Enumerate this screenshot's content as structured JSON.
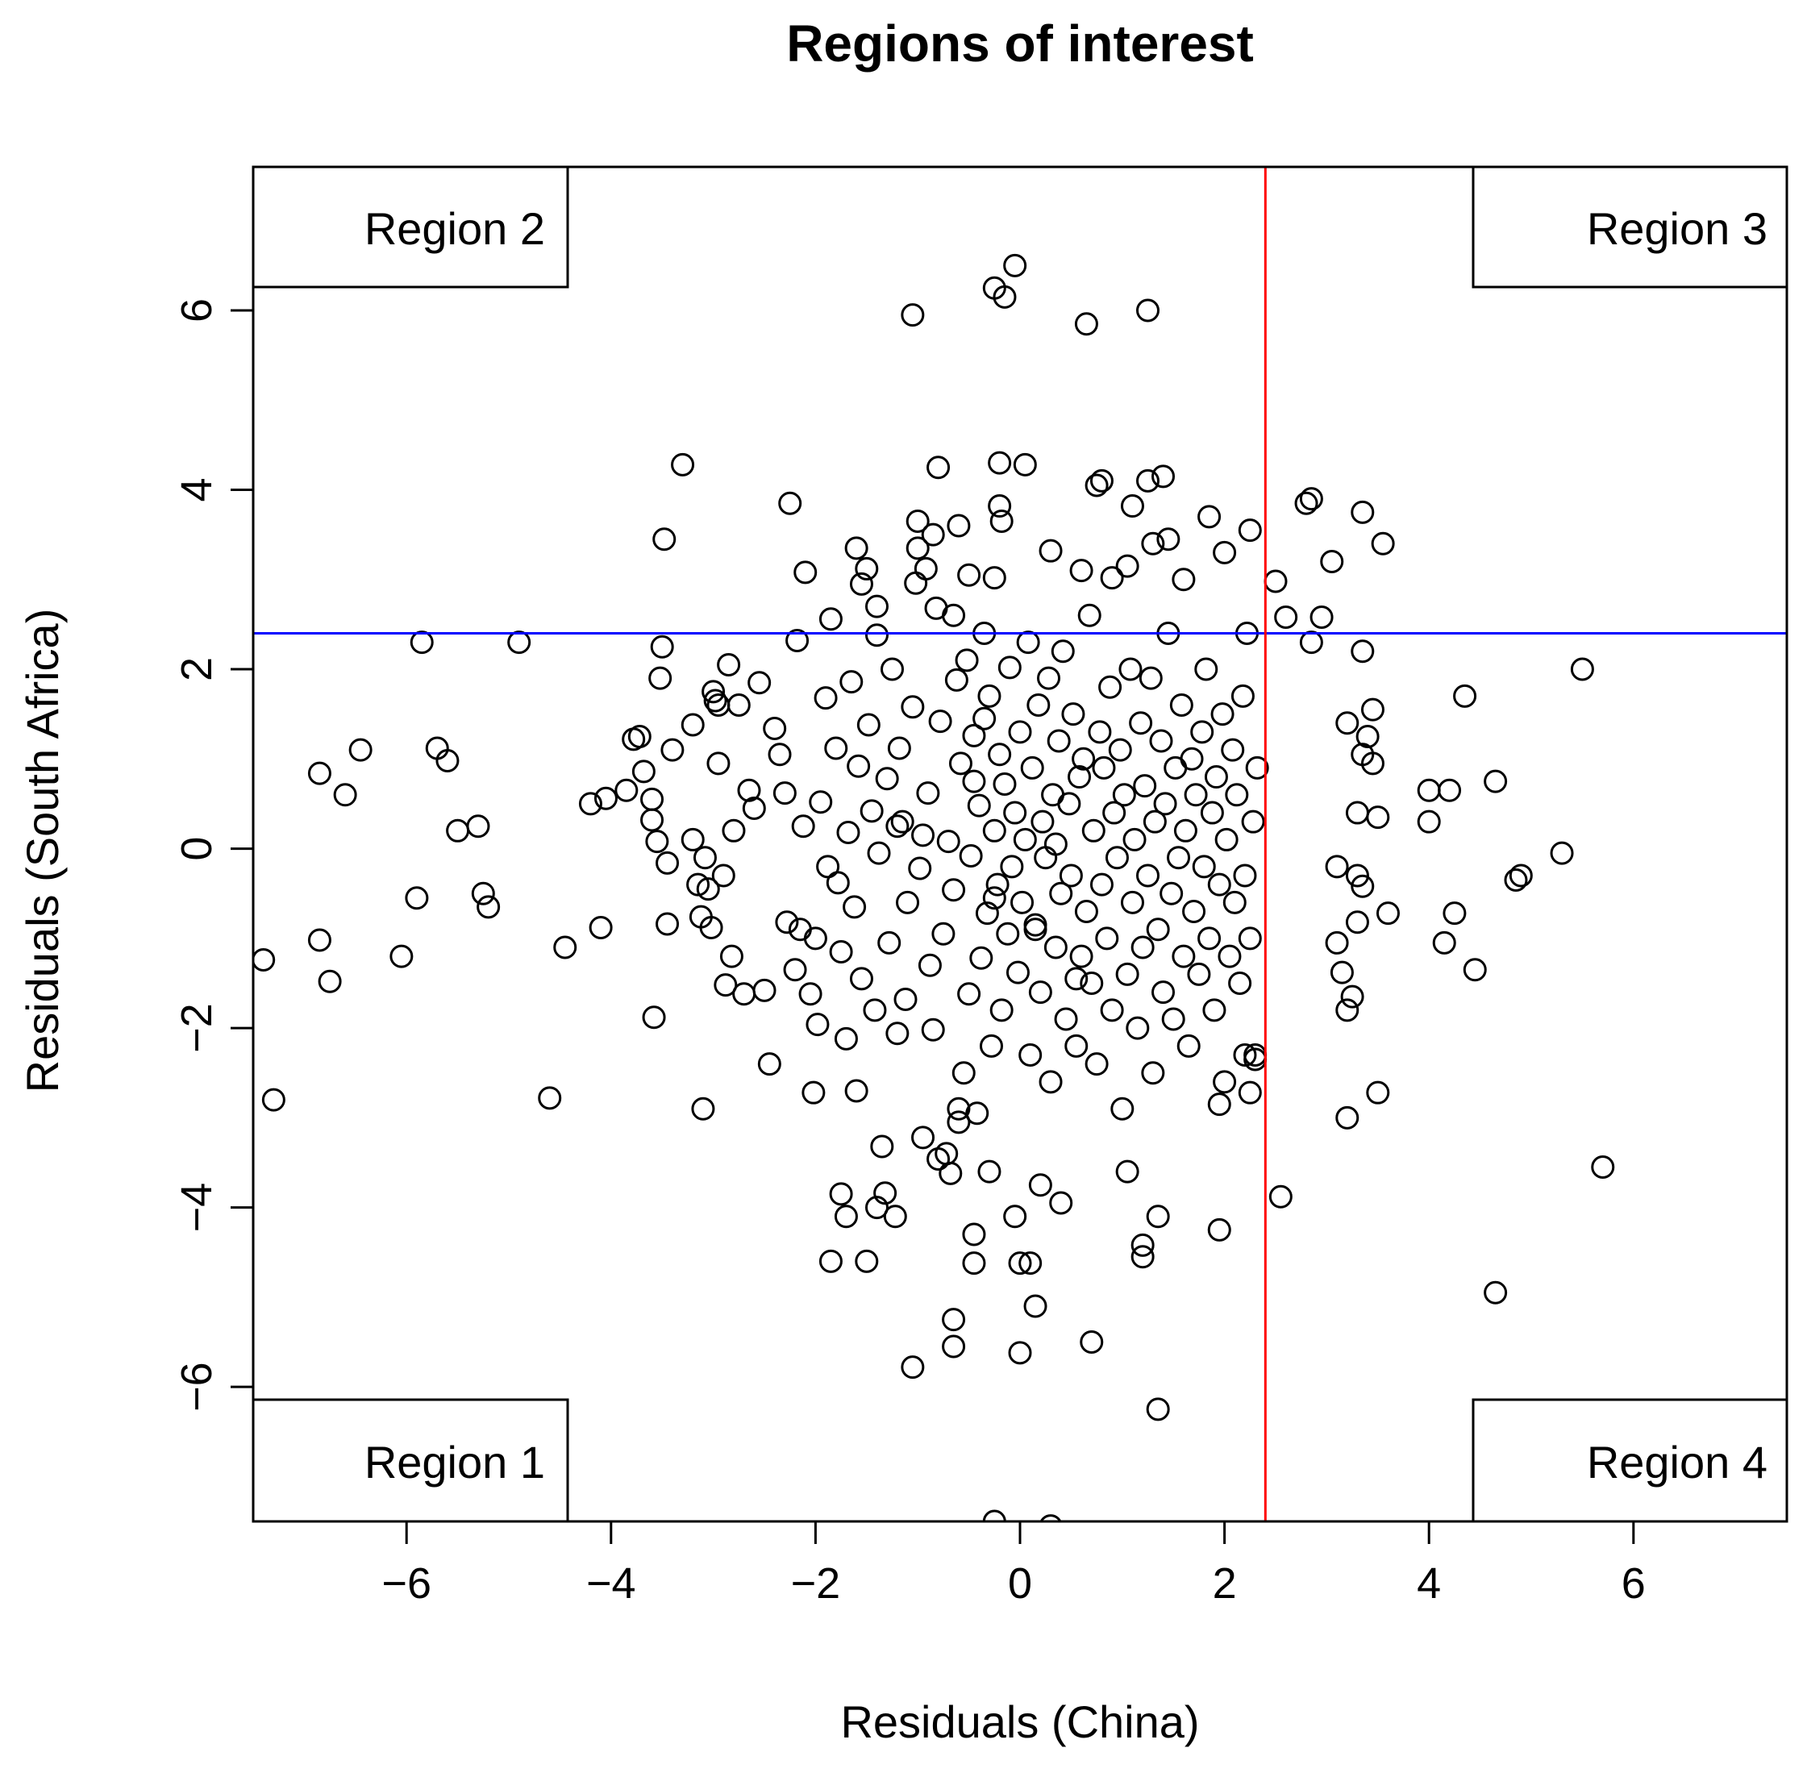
{
  "chart_data": {
    "type": "scatter",
    "title": "Regions of interest",
    "xlabel": "Residuals (China)",
    "ylabel": "Residuals (South Africa)",
    "xlim": [
      -7.5,
      7.5
    ],
    "ylim": [
      -7.5,
      7.6
    ],
    "xticks": [
      -6,
      -4,
      -2,
      0,
      2,
      4,
      6
    ],
    "yticks": [
      -6,
      -4,
      -2,
      0,
      2,
      4,
      6
    ],
    "xtick_labels": [
      "−6",
      "−4",
      "−2",
      "0",
      "2",
      "4",
      "6"
    ],
    "ytick_labels": [
      "−6",
      "−4",
      "−2",
      "0",
      "2",
      "4",
      "6"
    ],
    "grid": false,
    "point_color": "#000000",
    "hline": {
      "y": 2.4,
      "color": "#0000ff"
    },
    "vline": {
      "x": 2.4,
      "color": "#ff0000"
    },
    "regions": [
      {
        "label": "Region 1",
        "corner": "bottom-left"
      },
      {
        "label": "Region 2",
        "corner": "top-left"
      },
      {
        "label": "Region 3",
        "corner": "top-right"
      },
      {
        "label": "Region 4",
        "corner": "bottom-right"
      }
    ],
    "points": [
      [
        -7.4,
        -1.24
      ],
      [
        -7.3,
        -2.8
      ],
      [
        -6.85,
        0.84
      ],
      [
        -6.85,
        -1.02
      ],
      [
        -6.75,
        -1.48
      ],
      [
        -6.6,
        0.6
      ],
      [
        -6.45,
        1.1
      ],
      [
        -6.05,
        -1.2
      ],
      [
        -5.9,
        -0.55
      ],
      [
        -5.85,
        2.3
      ],
      [
        -5.7,
        1.12
      ],
      [
        -5.6,
        0.98
      ],
      [
        -5.5,
        0.2
      ],
      [
        -5.3,
        0.25
      ],
      [
        -5.25,
        -0.5
      ],
      [
        -5.2,
        -0.65
      ],
      [
        -4.9,
        2.3
      ],
      [
        -4.6,
        -2.78
      ],
      [
        -4.45,
        -1.1
      ],
      [
        -4.2,
        0.5
      ],
      [
        -4.1,
        -0.88
      ],
      [
        -4.05,
        0.56
      ],
      [
        -3.85,
        0.65
      ],
      [
        -3.78,
        1.22
      ],
      [
        -3.72,
        1.25
      ],
      [
        -3.68,
        0.86
      ],
      [
        -3.6,
        0.55
      ],
      [
        -3.6,
        0.32
      ],
      [
        -3.58,
        -1.88
      ],
      [
        -3.55,
        0.08
      ],
      [
        -3.52,
        1.9
      ],
      [
        -3.5,
        2.25
      ],
      [
        -3.48,
        3.45
      ],
      [
        -3.45,
        -0.16
      ],
      [
        -3.45,
        -0.84
      ],
      [
        -3.4,
        1.1
      ],
      [
        -3.3,
        4.28
      ],
      [
        -3.2,
        1.38
      ],
      [
        -3.2,
        0.1
      ],
      [
        -3.15,
        -0.4
      ],
      [
        -3.12,
        -0.76
      ],
      [
        -3.1,
        -2.9
      ],
      [
        -3.08,
        -0.1
      ],
      [
        -3.05,
        -0.45
      ],
      [
        -3.02,
        -0.88
      ],
      [
        -3.0,
        1.75
      ],
      [
        -2.98,
        1.65
      ],
      [
        -2.95,
        0.95
      ],
      [
        -2.9,
        -0.3
      ],
      [
        -2.88,
        -1.52
      ],
      [
        -2.85,
        2.05
      ],
      [
        -2.82,
        -1.2
      ],
      [
        -2.8,
        0.2
      ],
      [
        -2.75,
        1.6
      ],
      [
        -2.65,
        0.65
      ],
      [
        -2.6,
        0.45
      ],
      [
        -2.55,
        1.85
      ],
      [
        -2.5,
        -1.58
      ],
      [
        -2.45,
        -2.4
      ],
      [
        -2.4,
        1.34
      ],
      [
        -2.35,
        1.05
      ],
      [
        -2.3,
        0.62
      ],
      [
        -2.28,
        -0.82
      ],
      [
        -2.25,
        3.85
      ],
      [
        -2.2,
        -1.35
      ],
      [
        -2.18,
        2.32
      ],
      [
        -2.15,
        -0.9
      ],
      [
        -2.12,
        0.25
      ],
      [
        -2.1,
        3.08
      ],
      [
        -2.05,
        -1.62
      ],
      [
        -2.02,
        -2.72
      ],
      [
        -2.0,
        -1.0
      ],
      [
        -1.98,
        -1.96
      ],
      [
        -1.95,
        0.52
      ],
      [
        -1.9,
        1.68
      ],
      [
        -1.88,
        -0.2
      ],
      [
        -1.85,
        2.56
      ],
      [
        -1.8,
        1.12
      ],
      [
        -1.78,
        -0.38
      ],
      [
        -1.75,
        -1.15
      ],
      [
        -1.7,
        -2.12
      ],
      [
        -1.68,
        0.18
      ],
      [
        -1.65,
        1.86
      ],
      [
        -1.62,
        -0.65
      ],
      [
        -1.6,
        -2.7
      ],
      [
        -1.58,
        0.92
      ],
      [
        -1.55,
        -1.45
      ],
      [
        -1.5,
        -4.6
      ],
      [
        -1.48,
        1.38
      ],
      [
        -1.45,
        0.42
      ],
      [
        -1.42,
        -1.8
      ],
      [
        -1.4,
        2.38
      ],
      [
        -1.38,
        -0.05
      ],
      [
        -1.35,
        -3.32
      ],
      [
        -1.32,
        -3.84
      ],
      [
        -1.3,
        0.78
      ],
      [
        -1.28,
        -1.05
      ],
      [
        -1.25,
        2.0
      ],
      [
        -1.22,
        -4.1
      ],
      [
        -1.2,
        -2.06
      ],
      [
        -1.18,
        1.12
      ],
      [
        -1.15,
        0.3
      ],
      [
        -1.12,
        -1.68
      ],
      [
        -1.1,
        -0.6
      ],
      [
        -1.05,
        1.58
      ],
      [
        -1.02,
        2.96
      ],
      [
        -1.0,
        3.35
      ],
      [
        -0.98,
        -0.22
      ],
      [
        -0.95,
        -3.22
      ],
      [
        -0.92,
        3.12
      ],
      [
        -0.9,
        0.62
      ],
      [
        -0.88,
        -1.3
      ],
      [
        -0.85,
        -2.02
      ],
      [
        -0.82,
        2.68
      ],
      [
        -0.8,
        -3.46
      ],
      [
        -0.78,
        1.42
      ],
      [
        -0.75,
        -0.95
      ],
      [
        -0.72,
        -3.4
      ],
      [
        -0.7,
        0.08
      ],
      [
        -0.68,
        -3.62
      ],
      [
        -0.65,
        -0.46
      ],
      [
        -0.62,
        1.88
      ],
      [
        -0.6,
        -2.9
      ],
      [
        -0.58,
        0.95
      ],
      [
        -0.55,
        -2.5
      ],
      [
        -0.52,
        2.1
      ],
      [
        -0.5,
        -1.62
      ],
      [
        -0.48,
        -0.08
      ],
      [
        -0.45,
        1.26
      ],
      [
        -0.42,
        -2.95
      ],
      [
        -0.4,
        0.48
      ],
      [
        -0.38,
        -1.22
      ],
      [
        -0.35,
        2.4
      ],
      [
        -0.32,
        -0.72
      ],
      [
        -0.3,
        1.7
      ],
      [
        -0.28,
        -2.2
      ],
      [
        -0.25,
        0.2
      ],
      [
        -0.22,
        -0.4
      ],
      [
        -0.2,
        1.05
      ],
      [
        -0.18,
        -1.8
      ],
      [
        -0.15,
        0.72
      ],
      [
        -0.12,
        -0.95
      ],
      [
        -0.1,
        2.02
      ],
      [
        -0.08,
        -0.2
      ],
      [
        -0.05,
        0.4
      ],
      [
        -0.02,
        -1.38
      ],
      [
        0.0,
        1.3
      ],
      [
        0.02,
        -0.6
      ],
      [
        0.05,
        0.1
      ],
      [
        0.08,
        2.3
      ],
      [
        0.1,
        -2.3
      ],
      [
        0.12,
        0.9
      ],
      [
        0.15,
        -0.9
      ],
      [
        0.18,
        1.6
      ],
      [
        0.2,
        -1.6
      ],
      [
        0.22,
        0.3
      ],
      [
        0.25,
        -0.1
      ],
      [
        0.28,
        1.9
      ],
      [
        0.3,
        -2.6
      ],
      [
        0.32,
        0.6
      ],
      [
        0.35,
        -1.1
      ],
      [
        0.38,
        1.2
      ],
      [
        0.4,
        -0.5
      ],
      [
        0.42,
        2.2
      ],
      [
        0.45,
        -1.9
      ],
      [
        0.48,
        0.5
      ],
      [
        0.5,
        -0.3
      ],
      [
        0.52,
        1.5
      ],
      [
        0.55,
        -2.2
      ],
      [
        0.58,
        0.8
      ],
      [
        0.6,
        -1.2
      ],
      [
        0.62,
        1.0
      ],
      [
        0.65,
        -0.7
      ],
      [
        0.68,
        2.6
      ],
      [
        0.7,
        -1.5
      ],
      [
        0.72,
        0.2
      ],
      [
        0.75,
        -2.4
      ],
      [
        0.78,
        1.3
      ],
      [
        0.8,
        -0.4
      ],
      [
        0.82,
        0.9
      ],
      [
        0.85,
        -1.0
      ],
      [
        0.88,
        1.8
      ],
      [
        0.9,
        -1.8
      ],
      [
        0.92,
        0.4
      ],
      [
        0.95,
        -0.1
      ],
      [
        0.98,
        1.1
      ],
      [
        1.0,
        -2.9
      ],
      [
        1.02,
        0.6
      ],
      [
        1.05,
        -1.4
      ],
      [
        1.08,
        2.0
      ],
      [
        1.1,
        -0.6
      ],
      [
        1.12,
        0.1
      ],
      [
        1.15,
        -2.0
      ],
      [
        1.18,
        1.4
      ],
      [
        1.2,
        -1.1
      ],
      [
        1.22,
        0.7
      ],
      [
        1.25,
        -0.3
      ],
      [
        1.28,
        1.9
      ],
      [
        1.3,
        -2.5
      ],
      [
        1.32,
        0.3
      ],
      [
        1.35,
        -0.9
      ],
      [
        1.38,
        1.2
      ],
      [
        1.4,
        -1.6
      ],
      [
        1.42,
        0.5
      ],
      [
        1.45,
        2.4
      ],
      [
        1.48,
        -0.5
      ],
      [
        1.5,
        -1.9
      ],
      [
        1.52,
        0.9
      ],
      [
        1.55,
        -0.1
      ],
      [
        1.58,
        1.6
      ],
      [
        1.6,
        -1.2
      ],
      [
        1.62,
        0.2
      ],
      [
        1.65,
        -2.2
      ],
      [
        1.68,
        1.0
      ],
      [
        1.7,
        -0.7
      ],
      [
        1.72,
        0.6
      ],
      [
        1.75,
        -1.4
      ],
      [
        1.78,
        1.3
      ],
      [
        1.8,
        -0.2
      ],
      [
        1.82,
        2.0
      ],
      [
        1.85,
        -1.0
      ],
      [
        1.88,
        0.4
      ],
      [
        1.9,
        -1.8
      ],
      [
        1.92,
        0.8
      ],
      [
        1.95,
        -0.4
      ],
      [
        1.98,
        1.5
      ],
      [
        2.0,
        -2.6
      ],
      [
        2.02,
        0.1
      ],
      [
        2.05,
        -1.2
      ],
      [
        2.08,
        1.1
      ],
      [
        2.1,
        -0.6
      ],
      [
        2.12,
        0.6
      ],
      [
        2.15,
        -1.5
      ],
      [
        2.18,
        1.7
      ],
      [
        2.2,
        -0.3
      ],
      [
        2.22,
        2.4
      ],
      [
        2.25,
        -1.0
      ],
      [
        2.28,
        0.3
      ],
      [
        2.3,
        -2.3
      ],
      [
        2.32,
        0.9
      ],
      [
        -0.05,
        6.5
      ],
      [
        -0.25,
        6.25
      ],
      [
        -0.15,
        6.15
      ],
      [
        0.65,
        5.85
      ],
      [
        1.25,
        6.0
      ],
      [
        -1.05,
        5.95
      ],
      [
        -0.2,
        4.3
      ],
      [
        0.05,
        4.28
      ],
      [
        -0.8,
        4.25
      ],
      [
        0.8,
        4.1
      ],
      [
        0.75,
        4.05
      ],
      [
        1.25,
        4.1
      ],
      [
        1.4,
        4.15
      ],
      [
        1.1,
        3.82
      ],
      [
        -0.2,
        3.82
      ],
      [
        -0.18,
        3.65
      ],
      [
        -1.0,
        3.65
      ],
      [
        1.85,
        3.7
      ],
      [
        2.25,
        3.55
      ],
      [
        2.8,
        3.85
      ],
      [
        2.85,
        3.9
      ],
      [
        3.35,
        3.75
      ],
      [
        3.55,
        3.4
      ],
      [
        3.05,
        3.2
      ],
      [
        2.5,
        2.98
      ],
      [
        -0.85,
        3.5
      ],
      [
        -0.6,
        3.6
      ],
      [
        0.3,
        3.32
      ],
      [
        1.3,
        3.4
      ],
      [
        1.45,
        3.45
      ],
      [
        2.0,
        3.3
      ],
      [
        1.6,
        3.0
      ],
      [
        0.6,
        3.1
      ],
      [
        -0.5,
        3.05
      ],
      [
        -0.25,
        3.02
      ],
      [
        0.9,
        3.02
      ],
      [
        1.05,
        3.15
      ],
      [
        -1.6,
        3.35
      ],
      [
        -1.55,
        2.95
      ],
      [
        -1.5,
        3.12
      ],
      [
        -1.4,
        2.7
      ],
      [
        -0.65,
        2.6
      ],
      [
        2.6,
        2.58
      ],
      [
        2.95,
        2.58
      ],
      [
        2.85,
        2.3
      ],
      [
        3.35,
        2.2
      ],
      [
        5.5,
        2.0
      ],
      [
        4.35,
        1.7
      ],
      [
        3.45,
        1.55
      ],
      [
        3.2,
        1.4
      ],
      [
        3.4,
        1.25
      ],
      [
        3.35,
        1.05
      ],
      [
        3.45,
        0.95
      ],
      [
        4.65,
        0.75
      ],
      [
        4.0,
        0.65
      ],
      [
        4.2,
        0.65
      ],
      [
        4.0,
        0.3
      ],
      [
        3.5,
        0.35
      ],
      [
        3.3,
        0.4
      ],
      [
        5.3,
        -0.05
      ],
      [
        4.9,
        -0.3
      ],
      [
        4.85,
        -0.35
      ],
      [
        3.1,
        -0.2
      ],
      [
        3.3,
        -0.3
      ],
      [
        3.35,
        -0.42
      ],
      [
        3.6,
        -0.72
      ],
      [
        4.25,
        -0.72
      ],
      [
        4.15,
        -1.05
      ],
      [
        4.45,
        -1.35
      ],
      [
        3.3,
        -0.82
      ],
      [
        3.1,
        -1.05
      ],
      [
        3.15,
        -1.38
      ],
      [
        3.2,
        -1.8
      ],
      [
        3.25,
        -1.65
      ],
      [
        3.2,
        -3.0
      ],
      [
        3.5,
        -2.72
      ],
      [
        2.55,
        -3.88
      ],
      [
        5.7,
        -3.55
      ],
      [
        4.65,
        -4.95
      ],
      [
        2.3,
        -2.35
      ],
      [
        2.2,
        -2.3
      ],
      [
        2.25,
        -2.72
      ],
      [
        1.95,
        -2.85
      ],
      [
        1.95,
        -4.25
      ],
      [
        1.35,
        -4.1
      ],
      [
        1.2,
        -4.42
      ],
      [
        1.2,
        -4.55
      ],
      [
        0.7,
        -5.5
      ],
      [
        1.35,
        -6.25
      ],
      [
        0.15,
        -5.1
      ],
      [
        0.0,
        -5.62
      ],
      [
        -0.65,
        -5.25
      ],
      [
        -0.65,
        -5.55
      ],
      [
        -1.05,
        -5.78
      ],
      [
        -0.45,
        -4.3
      ],
      [
        -0.45,
        -4.62
      ],
      [
        -0.05,
        -4.1
      ],
      [
        0.0,
        -4.62
      ],
      [
        0.1,
        -4.62
      ],
      [
        -0.25,
        -7.5
      ],
      [
        0.3,
        -7.55
      ],
      [
        -1.85,
        -4.6
      ],
      [
        -1.7,
        -4.1
      ],
      [
        -1.75,
        -3.85
      ],
      [
        -1.4,
        -4.0
      ],
      [
        -0.6,
        -3.05
      ],
      [
        -0.3,
        -3.6
      ],
      [
        0.2,
        -3.75
      ],
      [
        0.4,
        -3.95
      ],
      [
        1.05,
        -3.6
      ],
      [
        -2.7,
        -1.62
      ],
      [
        -2.95,
        1.6
      ],
      [
        -1.2,
        0.25
      ],
      [
        -0.95,
        0.15
      ],
      [
        0.35,
        0.05
      ],
      [
        -0.25,
        -0.55
      ],
      [
        -0.45,
        0.75
      ],
      [
        0.15,
        -0.85
      ],
      [
        -0.35,
        1.45
      ],
      [
        0.55,
        -1.45
      ]
    ]
  }
}
